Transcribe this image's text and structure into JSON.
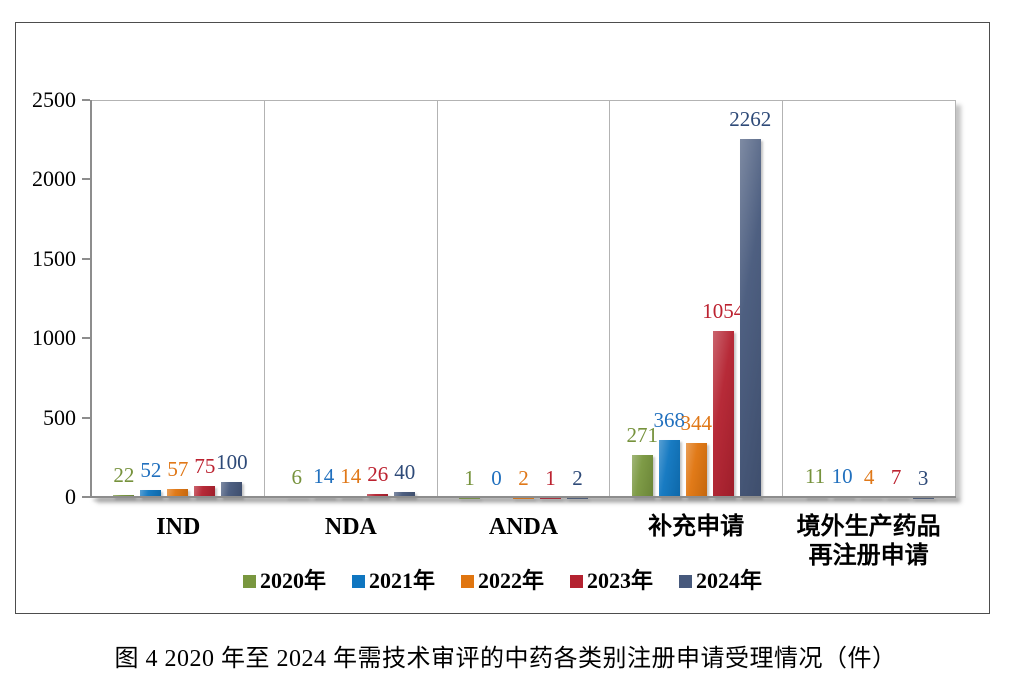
{
  "figure": {
    "caption": "图 4  2020 年至 2024 年需技术审评的中药各类别注册申请受理情况（件）"
  },
  "chart_data": {
    "type": "bar",
    "title": "",
    "xlabel": "",
    "ylabel": "",
    "categories": [
      [
        "IND"
      ],
      [
        "NDA"
      ],
      [
        "ANDA"
      ],
      [
        "补充申请"
      ],
      [
        "境外生产药品",
        "再注册申请"
      ]
    ],
    "series": [
      {
        "name": "2020年",
        "color": "#79973F",
        "label_color": "#76923C",
        "values": [
          22,
          6,
          1,
          271,
          11
        ]
      },
      {
        "name": "2021年",
        "color": "#0F76C0",
        "label_color": "#2170BE",
        "values": [
          52,
          14,
          0,
          368,
          10
        ]
      },
      {
        "name": "2022年",
        "color": "#E0750F",
        "label_color": "#E07818",
        "values": [
          57,
          14,
          2,
          344,
          4
        ]
      },
      {
        "name": "2023年",
        "color": "#B42230",
        "label_color": "#BC2230",
        "values": [
          75,
          26,
          1,
          1054,
          7
        ]
      },
      {
        "name": "2024年",
        "color": "#47597C",
        "label_color": "#2E4A78",
        "values": [
          100,
          40,
          2,
          2262,
          3
        ]
      }
    ],
    "ylim": [
      0,
      2500
    ],
    "yticks": [
      0,
      500,
      1000,
      1500,
      2000,
      2500
    ],
    "legend_position": "bottom",
    "grid": "vertical-category-dividers"
  }
}
